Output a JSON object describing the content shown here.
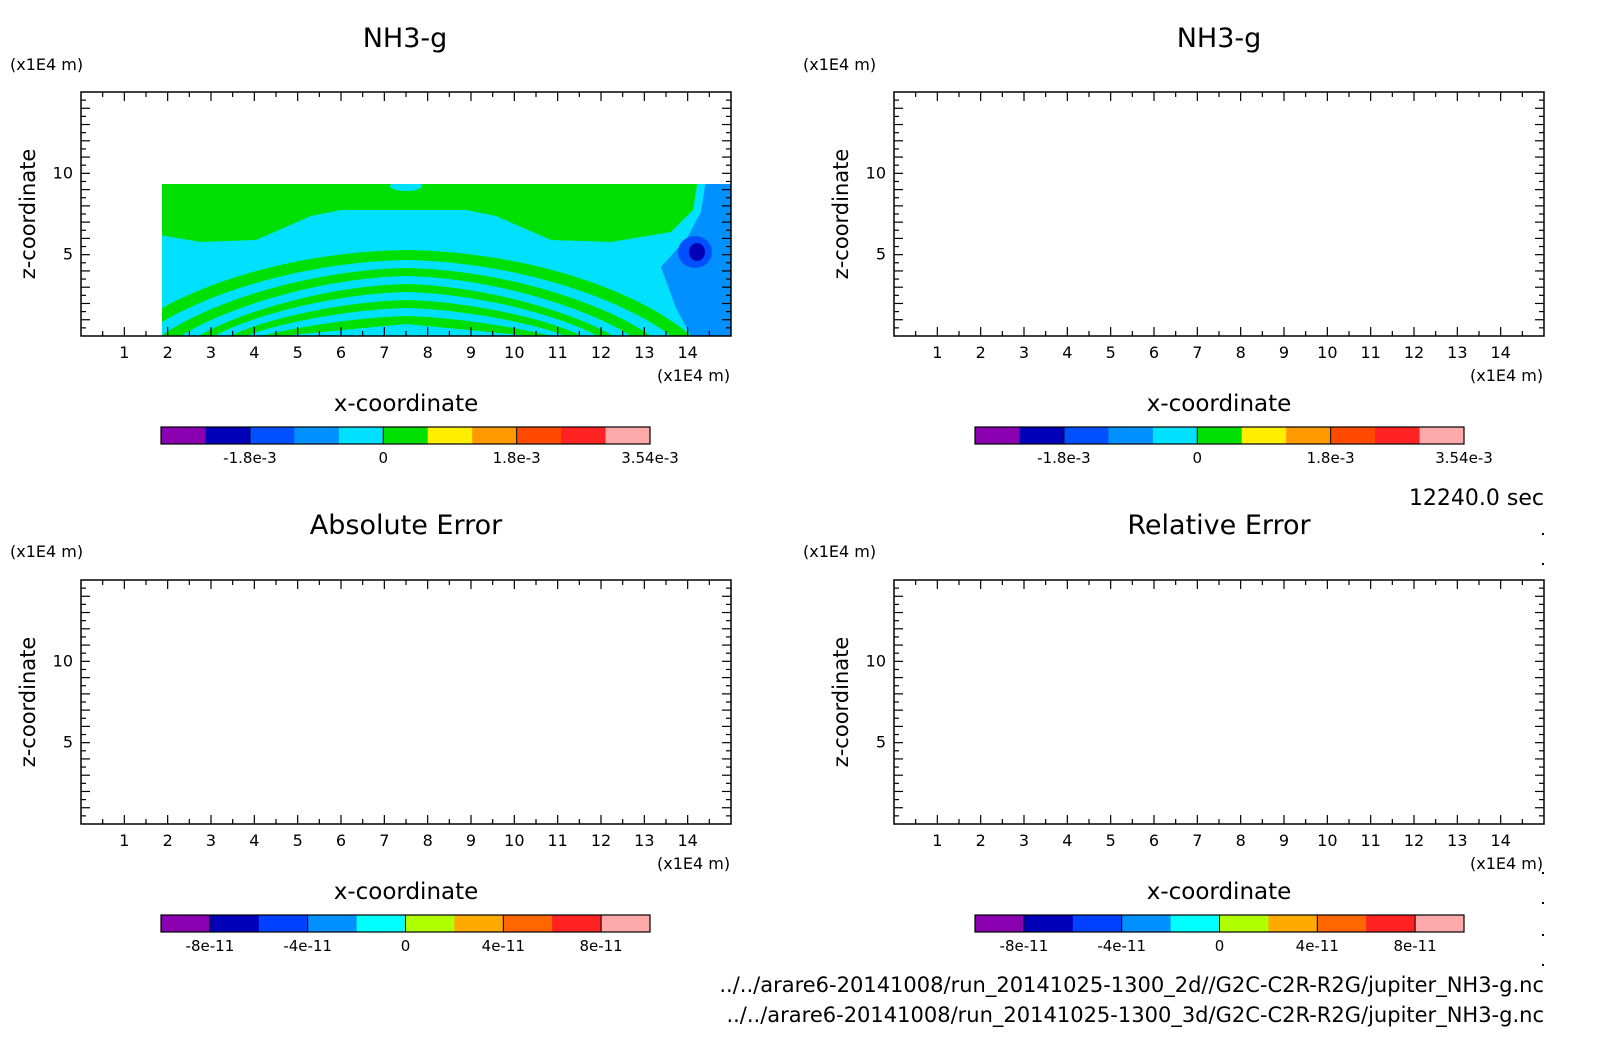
{
  "chart_data": [
    {
      "type": "heatmap",
      "title": "NH3-g",
      "xlabel": "x-coordinate",
      "ylabel": "z-coordinate",
      "x_unit": "(x1E4 m)",
      "y_unit": "(x1E4 m)",
      "xlim": [
        0,
        15
      ],
      "ylim": [
        0,
        15
      ],
      "xticks": [
        "1",
        "2",
        "3",
        "4",
        "5",
        "6",
        "7",
        "8",
        "9",
        "10",
        "11",
        "12",
        "13",
        "14"
      ],
      "yticks": [
        "5",
        "10"
      ],
      "colorbar": {
        "colors": [
          "#8a00b0",
          "#0000b8",
          "#0050ff",
          "#0090ff",
          "#00e0ff",
          "#00e000",
          "#ffee00",
          "#ff9900",
          "#ff4a00",
          "#ff2222",
          "#ffaaaa"
        ],
        "ticks": [
          "-1.8e-3",
          "0",
          "1.8e-3",
          "3.54e-3"
        ]
      },
      "filled": true
    },
    {
      "type": "heatmap",
      "title": "NH3-g",
      "xlabel": "x-coordinate",
      "ylabel": "z-coordinate",
      "x_unit": "(x1E4 m)",
      "y_unit": "(x1E4 m)",
      "xlim": [
        0,
        15
      ],
      "ylim": [
        0,
        15
      ],
      "xticks": [
        "1",
        "2",
        "3",
        "4",
        "5",
        "6",
        "7",
        "8",
        "9",
        "10",
        "11",
        "12",
        "13",
        "14"
      ],
      "yticks": [
        "5",
        "10"
      ],
      "colorbar": {
        "colors": [
          "#8a00b0",
          "#0000b8",
          "#0050ff",
          "#0090ff",
          "#00e0ff",
          "#00e000",
          "#ffee00",
          "#ff9900",
          "#ff4a00",
          "#ff2222",
          "#ffaaaa"
        ],
        "ticks": [
          "-1.8e-3",
          "0",
          "1.8e-3",
          "3.54e-3"
        ]
      },
      "filled": true
    },
    {
      "type": "heatmap",
      "title": "Absolute Error",
      "xlabel": "x-coordinate",
      "ylabel": "z-coordinate",
      "x_unit": "(x1E4 m)",
      "y_unit": "(x1E4 m)",
      "xlim": [
        0,
        15
      ],
      "ylim": [
        0,
        15
      ],
      "xticks": [
        "1",
        "2",
        "3",
        "4",
        "5",
        "6",
        "7",
        "8",
        "9",
        "10",
        "11",
        "12",
        "13",
        "14"
      ],
      "yticks": [
        "5",
        "10"
      ],
      "colorbar": {
        "colors": [
          "#8a00b0",
          "#0000b8",
          "#0040ff",
          "#0090ff",
          "#00ffff",
          "#b0ff00",
          "#ffaa00",
          "#ff6600",
          "#ff2222",
          "#ffaaaa"
        ],
        "ticks": [
          "-8e-11",
          "-4e-11",
          "0",
          "4e-11",
          "8e-11"
        ]
      },
      "filled": false
    },
    {
      "type": "heatmap",
      "title": "Relative Error",
      "xlabel": "x-coordinate",
      "ylabel": "z-coordinate",
      "x_unit": "(x1E4 m)",
      "y_unit": "(x1E4 m)",
      "xlim": [
        0,
        15
      ],
      "ylim": [
        0,
        15
      ],
      "xticks": [
        "1",
        "2",
        "3",
        "4",
        "5",
        "6",
        "7",
        "8",
        "9",
        "10",
        "11",
        "12",
        "13",
        "14"
      ],
      "yticks": [
        "5",
        "10"
      ],
      "colorbar": {
        "colors": [
          "#8a00b0",
          "#0000b8",
          "#0040ff",
          "#0090ff",
          "#00ffff",
          "#b0ff00",
          "#ffaa00",
          "#ff6600",
          "#ff2222",
          "#ffaaaa"
        ],
        "ticks": [
          "-8e-11",
          "-4e-11",
          "0",
          "4e-11",
          "8e-11"
        ]
      },
      "filled": false
    }
  ],
  "time_label": "12240.0 sec",
  "file_paths": [
    "../../arare6-20141008/run_20141025-1300_2d//G2C-C2R-R2G/jupiter_NH3-g.nc",
    "../../arare6-20141008/run_20141025-1300_3d/G2C-C2R-R2G/jupiter_NH3-g.nc"
  ]
}
